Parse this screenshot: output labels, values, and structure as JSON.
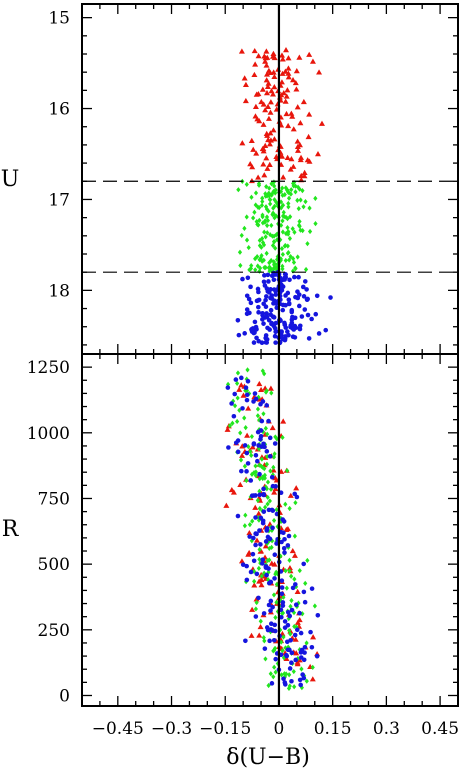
{
  "chart_data": [
    {
      "type": "scatter",
      "panel": "top",
      "ylabel": "U",
      "xlabel": "",
      "xlim": [
        -0.55,
        0.5
      ],
      "ylim": [
        18.7,
        14.85
      ],
      "y_inverted": true,
      "yticks": [
        15,
        16,
        17,
        18
      ],
      "ytick_labels": [
        "15",
        "16",
        "17",
        "18"
      ],
      "xticks": [
        -0.45,
        -0.3,
        -0.15,
        0,
        0.15,
        0.3,
        0.45
      ],
      "grid": false,
      "reference_lines": [
        {
          "orientation": "vertical",
          "x": 0,
          "style": "solid"
        },
        {
          "orientation": "horizontal",
          "y": 16.8,
          "style": "dashed"
        },
        {
          "orientation": "horizontal",
          "y": 17.8,
          "style": "dashed"
        }
      ],
      "series": [
        {
          "color": "#e8160c",
          "marker": "triangle",
          "y_range": [
            15.35,
            16.8
          ],
          "x_range": [
            -0.15,
            0.15
          ],
          "count": 140
        },
        {
          "color": "#22e61e",
          "marker": "diamond",
          "y_range": [
            16.8,
            17.8
          ],
          "x_range": [
            -0.15,
            0.13
          ],
          "count": 210
        },
        {
          "color": "#1515de",
          "marker": "circle",
          "y_range": [
            17.8,
            18.58
          ],
          "x_range": [
            -0.15,
            0.15
          ],
          "count": 190
        }
      ]
    },
    {
      "type": "scatter",
      "panel": "bottom",
      "ylabel": "R",
      "xlabel": "δ(U−B)",
      "xlim": [
        -0.55,
        0.5
      ],
      "ylim": [
        -40,
        1300
      ],
      "yticks": [
        0,
        250,
        500,
        750,
        1000,
        1250
      ],
      "ytick_labels": [
        "0",
        "250",
        "500",
        "750",
        "1000",
        "1250"
      ],
      "xticks": [
        -0.45,
        -0.3,
        -0.15,
        0,
        0.15,
        0.3,
        0.45
      ],
      "xtick_labels": [
        "−0.45",
        "−0.3",
        "−0.15",
        "0",
        "0.15",
        "0.3",
        "0.45"
      ],
      "grid": false,
      "reference_lines": [
        {
          "orientation": "vertical",
          "x": 0,
          "style": "solid"
        }
      ],
      "series": [
        {
          "color": "#e8160c",
          "marker": "triangle",
          "y_range": [
            20,
            1200
          ],
          "x_range": [
            -0.15,
            0.15
          ],
          "count": 140
        },
        {
          "color": "#22e61e",
          "marker": "diamond",
          "y_range": [
            20,
            1240
          ],
          "x_range": [
            -0.15,
            0.13
          ],
          "count": 210
        },
        {
          "color": "#1515de",
          "marker": "circle",
          "y_range": [
            20,
            1210
          ],
          "x_range": [
            -0.15,
            0.15
          ],
          "count": 190
        }
      ]
    }
  ]
}
